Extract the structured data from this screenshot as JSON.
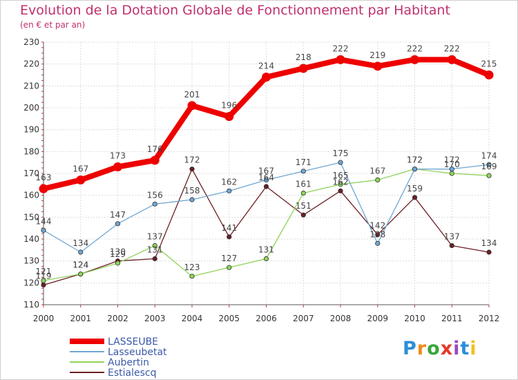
{
  "header": {
    "title": "Evolution de la Dotation Globale de Fonctionnement par Habitant",
    "subtitle": "(en € et par an)"
  },
  "logo": {
    "text": "Proxiti",
    "colors": [
      "#2a8fd6",
      "#f08a1c",
      "#3aa63a",
      "#e23a2a",
      "#9a4ab8",
      "#2a8fd6",
      "#f0c020"
    ]
  },
  "chart_data": {
    "type": "line",
    "x": [
      2000,
      2001,
      2002,
      2003,
      2004,
      2005,
      2006,
      2007,
      2008,
      2009,
      2010,
      2011,
      2012
    ],
    "xlim": [
      2000,
      2012
    ],
    "ylim": [
      110,
      230
    ],
    "yticks": [
      110,
      120,
      130,
      140,
      150,
      160,
      170,
      180,
      190,
      200,
      210,
      220,
      230
    ],
    "grid": true,
    "legend_position": "bottom-left",
    "series": [
      {
        "name": "Estialescq",
        "color": "#6b1e24",
        "values": [
          119,
          124,
          130,
          131,
          172,
          141,
          164,
          151,
          162,
          142,
          159,
          137,
          134
        ],
        "labels": [
          "119",
          "124",
          "130",
          "131",
          "172",
          "141",
          "164",
          "151",
          "162",
          "142",
          "159",
          "137",
          "134"
        ]
      },
      {
        "name": "Aubertin",
        "color": "#8fd35a",
        "values": [
          121,
          124,
          129,
          137,
          123,
          127,
          131,
          161,
          165,
          167,
          172,
          170,
          169
        ],
        "labels": [
          "121",
          "124",
          "129",
          "137",
          "123",
          "127",
          "131",
          "161",
          "165",
          "167",
          "172",
          "170",
          "169"
        ]
      },
      {
        "name": "Lasseubetat",
        "color": "#6fa6d2",
        "values": [
          144,
          134,
          147,
          156,
          158,
          162,
          167,
          171,
          175,
          138,
          172,
          172,
          174
        ],
        "labels": [
          "144",
          "134",
          "147",
          "156",
          "158",
          "162",
          "167",
          "171",
          "175",
          "138",
          "172",
          "172",
          "174"
        ]
      },
      {
        "name": "LASSEUBE",
        "color": "#ee0000",
        "values": [
          163,
          167,
          173,
          176,
          201,
          196,
          214,
          218,
          222,
          219,
          222,
          222,
          215
        ],
        "labels": [
          "163",
          "167",
          "173",
          "176",
          "201",
          "196",
          "214",
          "218",
          "222",
          "219",
          "222",
          "222",
          "215"
        ]
      }
    ]
  }
}
